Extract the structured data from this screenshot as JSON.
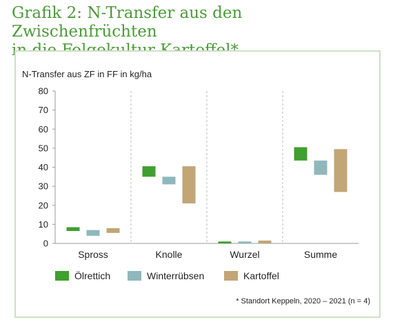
{
  "heading": {
    "line1": "Grafik 2: N-Transfer aus den Zwischenfrüchten",
    "line2": "in die Folgekultur Kartoffel*"
  },
  "footnote": "* Standort Keppeln, 2020 – 2021 (n = 4)",
  "colors": {
    "Ölrettich": "#3f9f2f",
    "Winterrübsen": "#8fb8bc",
    "Kartoffel": "#c2a676",
    "heading": "#4c9a3a",
    "frame": "#cfe0c6"
  },
  "chart_data": {
    "type": "bar",
    "subtype": "floating range bars",
    "ylabel": "N-Transfer aus ZF in FF in kg/ha",
    "ylim": [
      0,
      80
    ],
    "yticks": [
      0,
      10,
      20,
      30,
      40,
      50,
      60,
      70,
      80
    ],
    "categories": [
      "Spross",
      "Knolle",
      "Wurzel",
      "Summe"
    ],
    "legend_position": "bottom",
    "series": [
      {
        "name": "Ölrettich",
        "ranges": [
          [
            6.5,
            8.5
          ],
          [
            35,
            40.5
          ],
          [
            0,
            1
          ],
          [
            43.5,
            50.5
          ]
        ]
      },
      {
        "name": "Winterrübsen",
        "ranges": [
          [
            4,
            7
          ],
          [
            31,
            35
          ],
          [
            0,
            1
          ],
          [
            36,
            43.5
          ]
        ]
      },
      {
        "name": "Kartoffel",
        "ranges": [
          [
            5.5,
            8
          ],
          [
            21,
            40.5
          ],
          [
            0,
            1.5
          ],
          [
            27,
            49.5
          ]
        ]
      }
    ]
  }
}
